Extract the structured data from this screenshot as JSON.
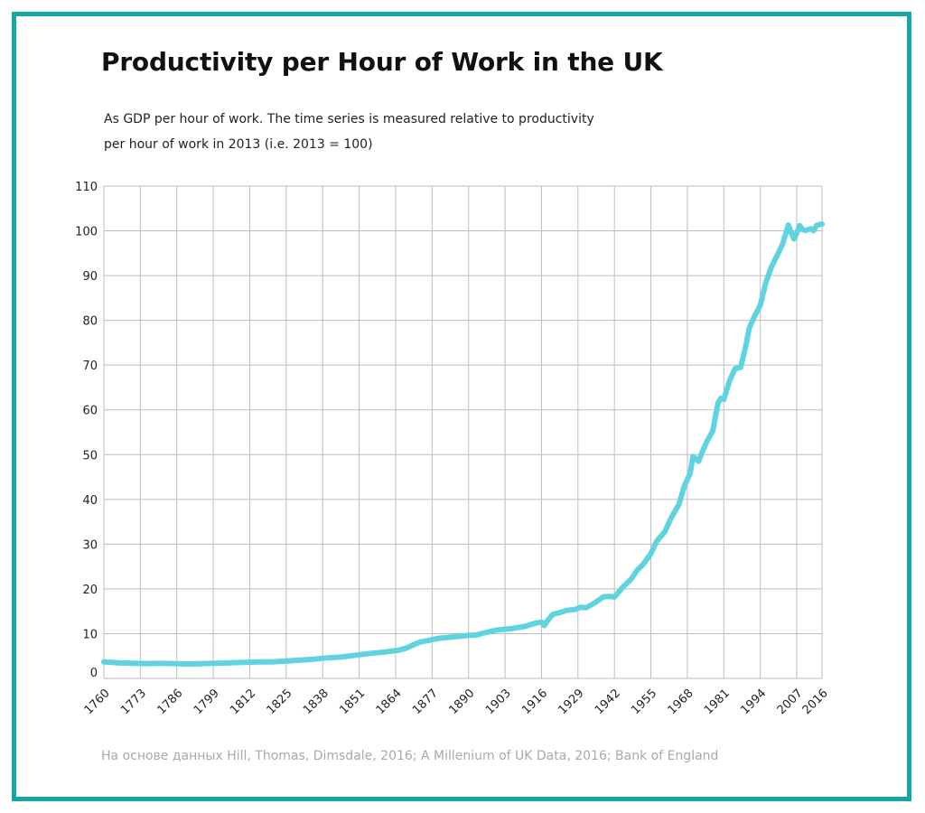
{
  "title": "Productivity per Hour of Work in the UK",
  "subtitle_line1": "As GDP per hour of work. The time series is measured relative to productivity",
  "subtitle_line2": "per hour of work in 2013 (i.e. 2013 = 100)",
  "source": "На основе данных Hill, Thomas, Dimsdale, 2016; A Millenium of UK Data, 2016; Bank of England",
  "colors": {
    "frame": "#14a6a6",
    "line": "#5fd3df",
    "grid": "#bdbdbd"
  },
  "chart_data": {
    "type": "line",
    "title": "Productivity per Hour of Work in the UK",
    "xlabel": "",
    "ylabel": "",
    "xlim": [
      1760,
      2016
    ],
    "ylim": [
      0,
      110
    ],
    "x_ticks": [
      "1760",
      "1773",
      "1786",
      "1799",
      "1812",
      "1825",
      "1838",
      "1851",
      "1864",
      "1877",
      "1890",
      "1903",
      "1916",
      "1929",
      "1942",
      "1955",
      "1968",
      "1981",
      "1994",
      "2007",
      "2016"
    ],
    "y_ticks": [
      "0",
      "10",
      "20",
      "30",
      "40",
      "50",
      "60",
      "70",
      "80",
      "90",
      "100",
      "110"
    ],
    "grid": true,
    "legend": "none",
    "series": [
      {
        "x": [
          1760,
          1765,
          1770,
          1775,
          1780,
          1785,
          1790,
          1795,
          1800,
          1805,
          1810,
          1815,
          1820,
          1825,
          1830,
          1835,
          1840,
          1845,
          1850,
          1855,
          1860,
          1865,
          1868,
          1870,
          1873,
          1875,
          1878,
          1880,
          1885,
          1890,
          1893,
          1895,
          1900,
          1903,
          1905,
          1910,
          1913,
          1915,
          1916,
          1917,
          1918,
          1920,
          1923,
          1925,
          1928,
          1930,
          1932,
          1935,
          1938,
          1940,
          1942,
          1943,
          1945,
          1948,
          1950,
          1952,
          1955,
          1957,
          1960,
          1962,
          1965,
          1967,
          1969,
          1970,
          1972,
          1973,
          1975,
          1977,
          1979,
          1980,
          1981,
          1983,
          1985,
          1987,
          1989,
          1990,
          1992,
          1994,
          1996,
          1998,
          2000,
          2002,
          2004,
          2006,
          2007,
          2008,
          2009,
          2010,
          2012,
          2013,
          2014,
          2015,
          2016
        ],
        "y": [
          3.7,
          3.5,
          3.4,
          3.3,
          3.4,
          3.3,
          3.2,
          3.3,
          3.4,
          3.5,
          3.6,
          3.7,
          3.7,
          3.9,
          4.1,
          4.3,
          4.6,
          4.8,
          5.2,
          5.6,
          5.9,
          6.3,
          6.8,
          7.4,
          8.2,
          8.4,
          8.8,
          9.0,
          9.3,
          9.6,
          9.7,
          10.1,
          10.8,
          11.0,
          11.1,
          11.6,
          12.2,
          12.5,
          12.6,
          11.8,
          12.8,
          14.3,
          14.8,
          15.2,
          15.4,
          15.9,
          15.8,
          16.9,
          18.2,
          18.3,
          18.2,
          18.9,
          20.4,
          22.2,
          24.1,
          25.3,
          27.9,
          30.6,
          32.8,
          35.6,
          38.9,
          43.1,
          45.8,
          49.6,
          48.5,
          50.2,
          53.0,
          55.2,
          61.7,
          62.6,
          62.3,
          66.4,
          69.2,
          69.5,
          74.8,
          78.2,
          81.0,
          83.4,
          88.5,
          92.0,
          94.5,
          97.1,
          101.3,
          98.2,
          99.5,
          101.2,
          100.3,
          100.1,
          100.5,
          100.0,
          101.2,
          101.4,
          101.5
        ]
      }
    ]
  }
}
